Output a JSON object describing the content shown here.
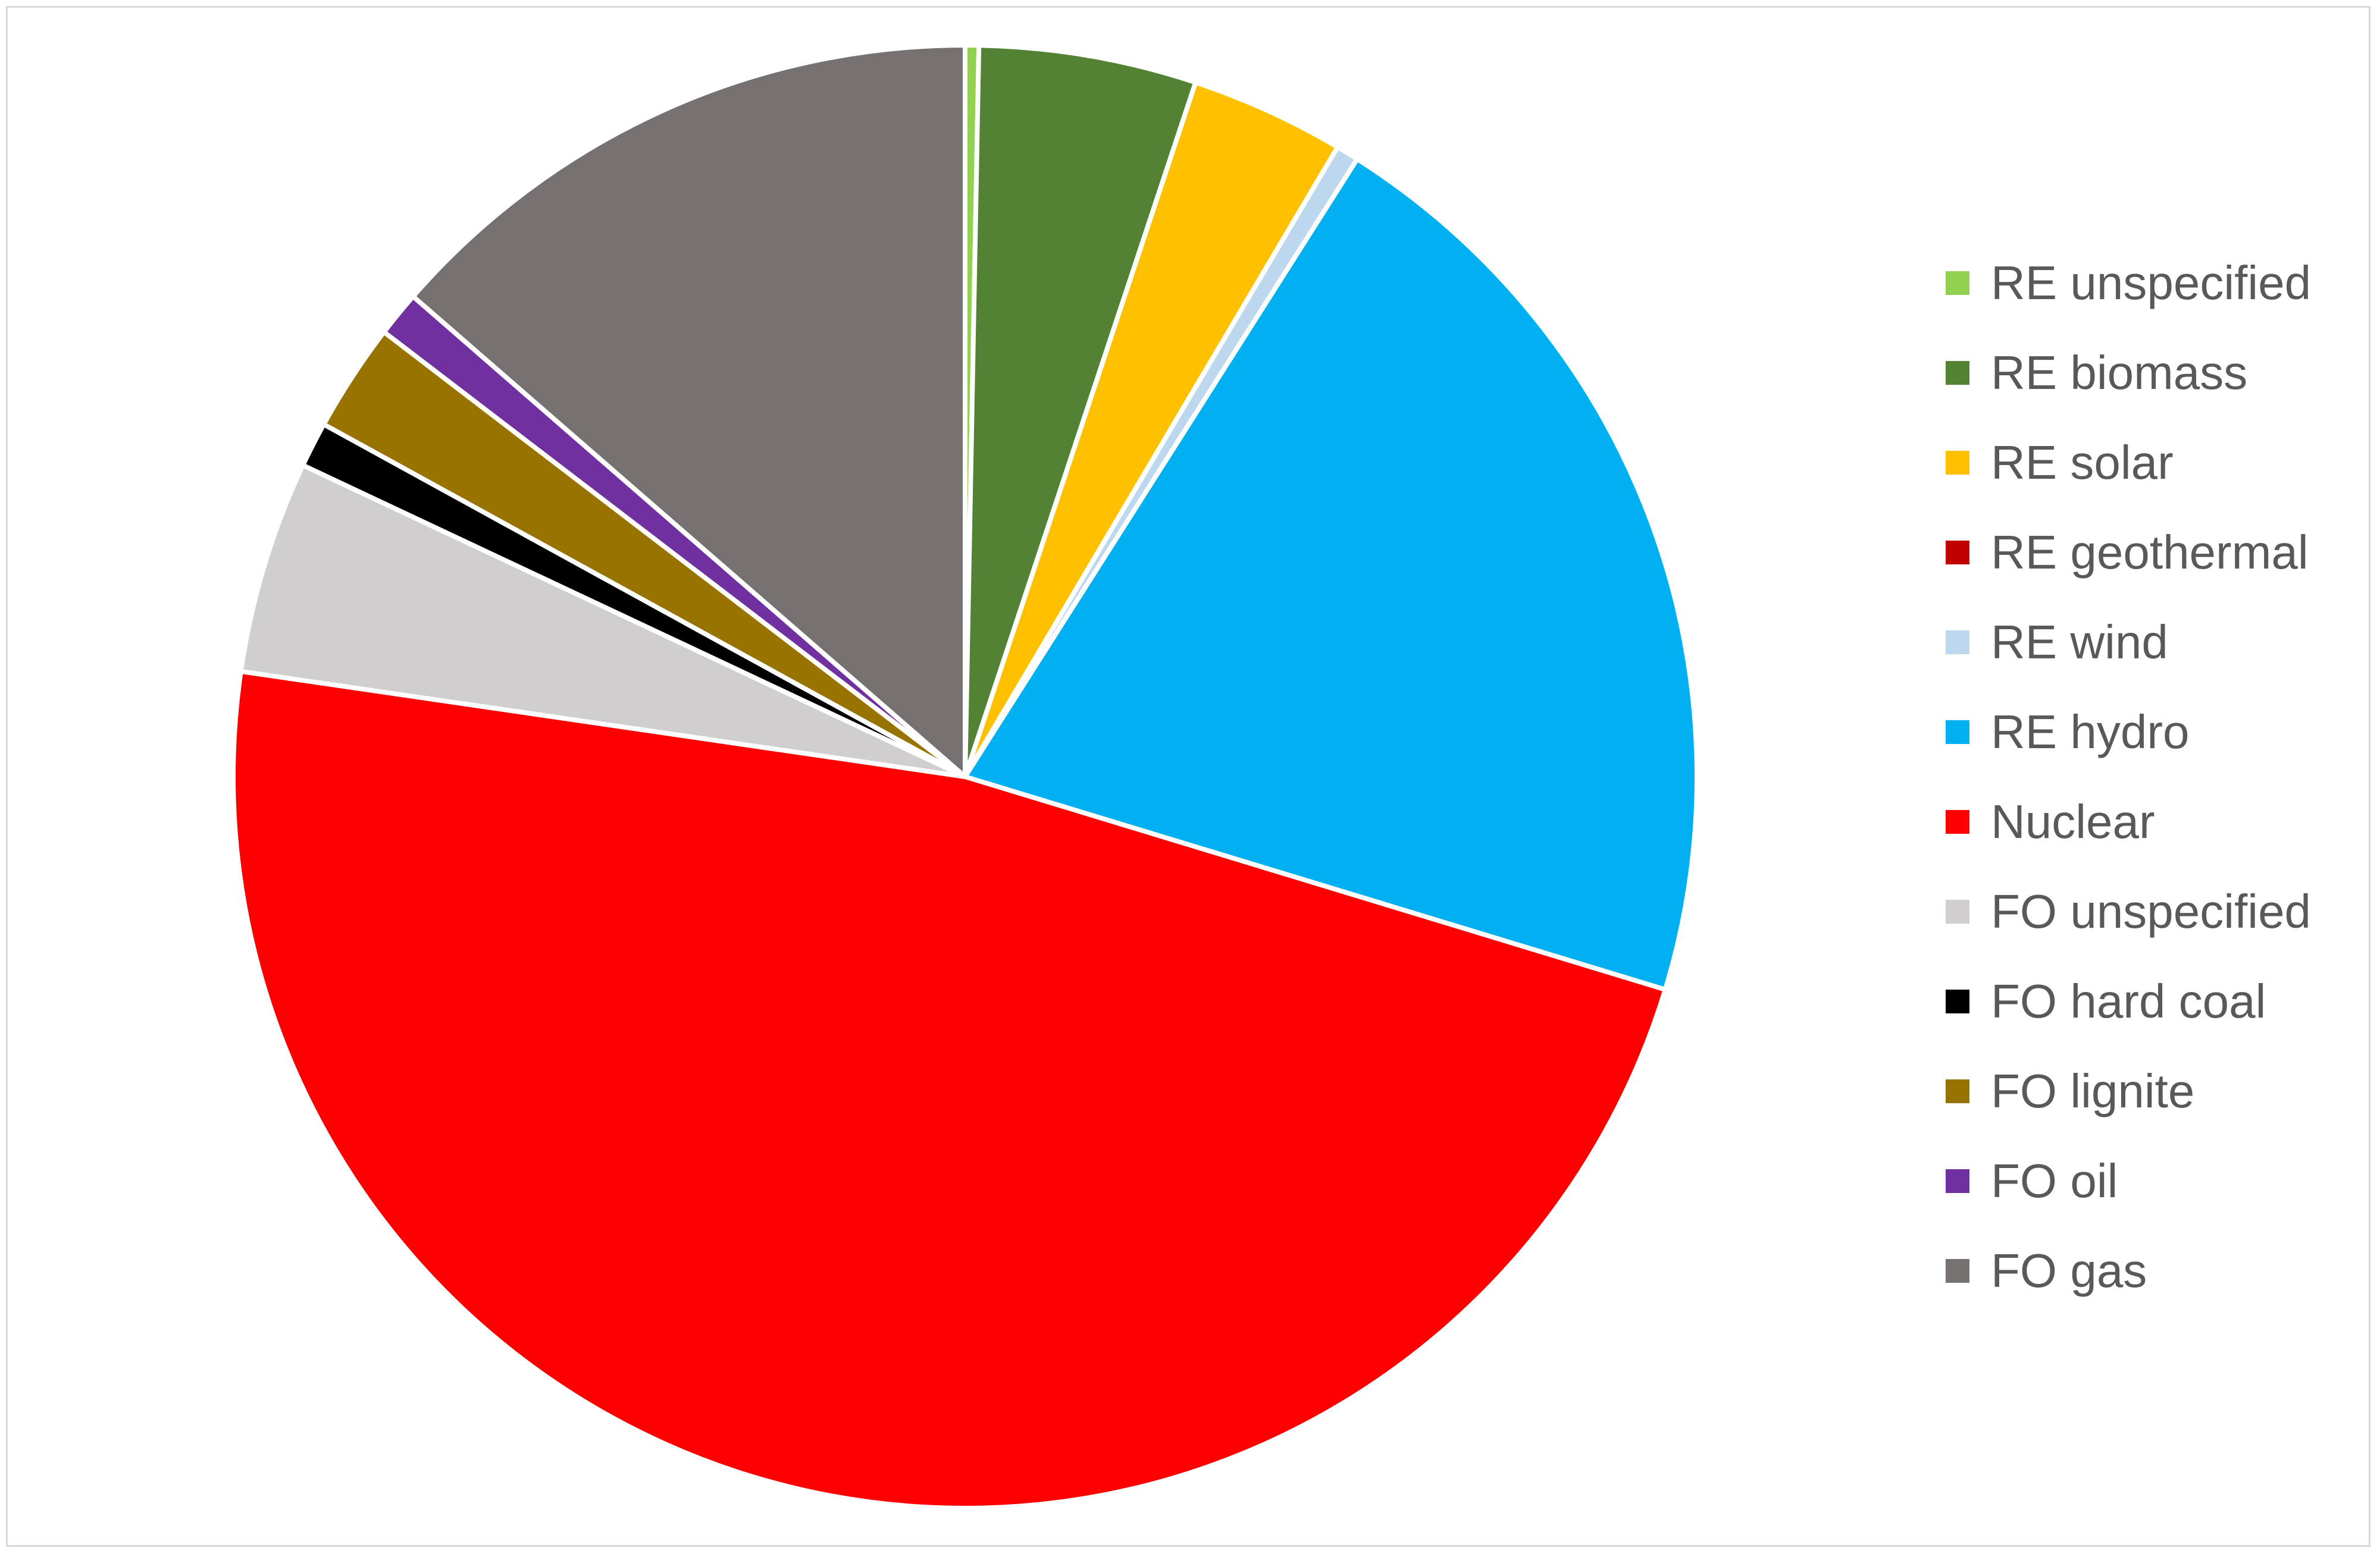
{
  "chart_data": {
    "type": "pie",
    "title": "",
    "start_angle_deg": 0,
    "direction": "clockwise",
    "legend_position": "right",
    "slices": [
      {
        "label": "RE unspecified",
        "value": 0.3,
        "color": "#92d050"
      },
      {
        "label": "RE biomass",
        "value": 4.8,
        "color": "#548235"
      },
      {
        "label": "RE solar",
        "value": 3.4,
        "color": "#ffc000"
      },
      {
        "label": "RE geothermal",
        "value": 0.0,
        "color": "#c00000"
      },
      {
        "label": "RE wind",
        "value": 0.5,
        "color": "#bdd7ee"
      },
      {
        "label": "RE hydro",
        "value": 20.7,
        "color": "#00b0f0"
      },
      {
        "label": "Nuclear",
        "value": 47.6,
        "color": "#ff0000"
      },
      {
        "label": "FO unspecified",
        "value": 4.7,
        "color": "#d0cece"
      },
      {
        "label": "FO hard coal",
        "value": 1.0,
        "color": "#000000"
      },
      {
        "label": "FO lignite",
        "value": 2.4,
        "color": "#997300"
      },
      {
        "label": "FO oil",
        "value": 1.0,
        "color": "#7030a0"
      },
      {
        "label": "FO gas",
        "value": 13.6,
        "color": "#767171"
      }
    ]
  }
}
